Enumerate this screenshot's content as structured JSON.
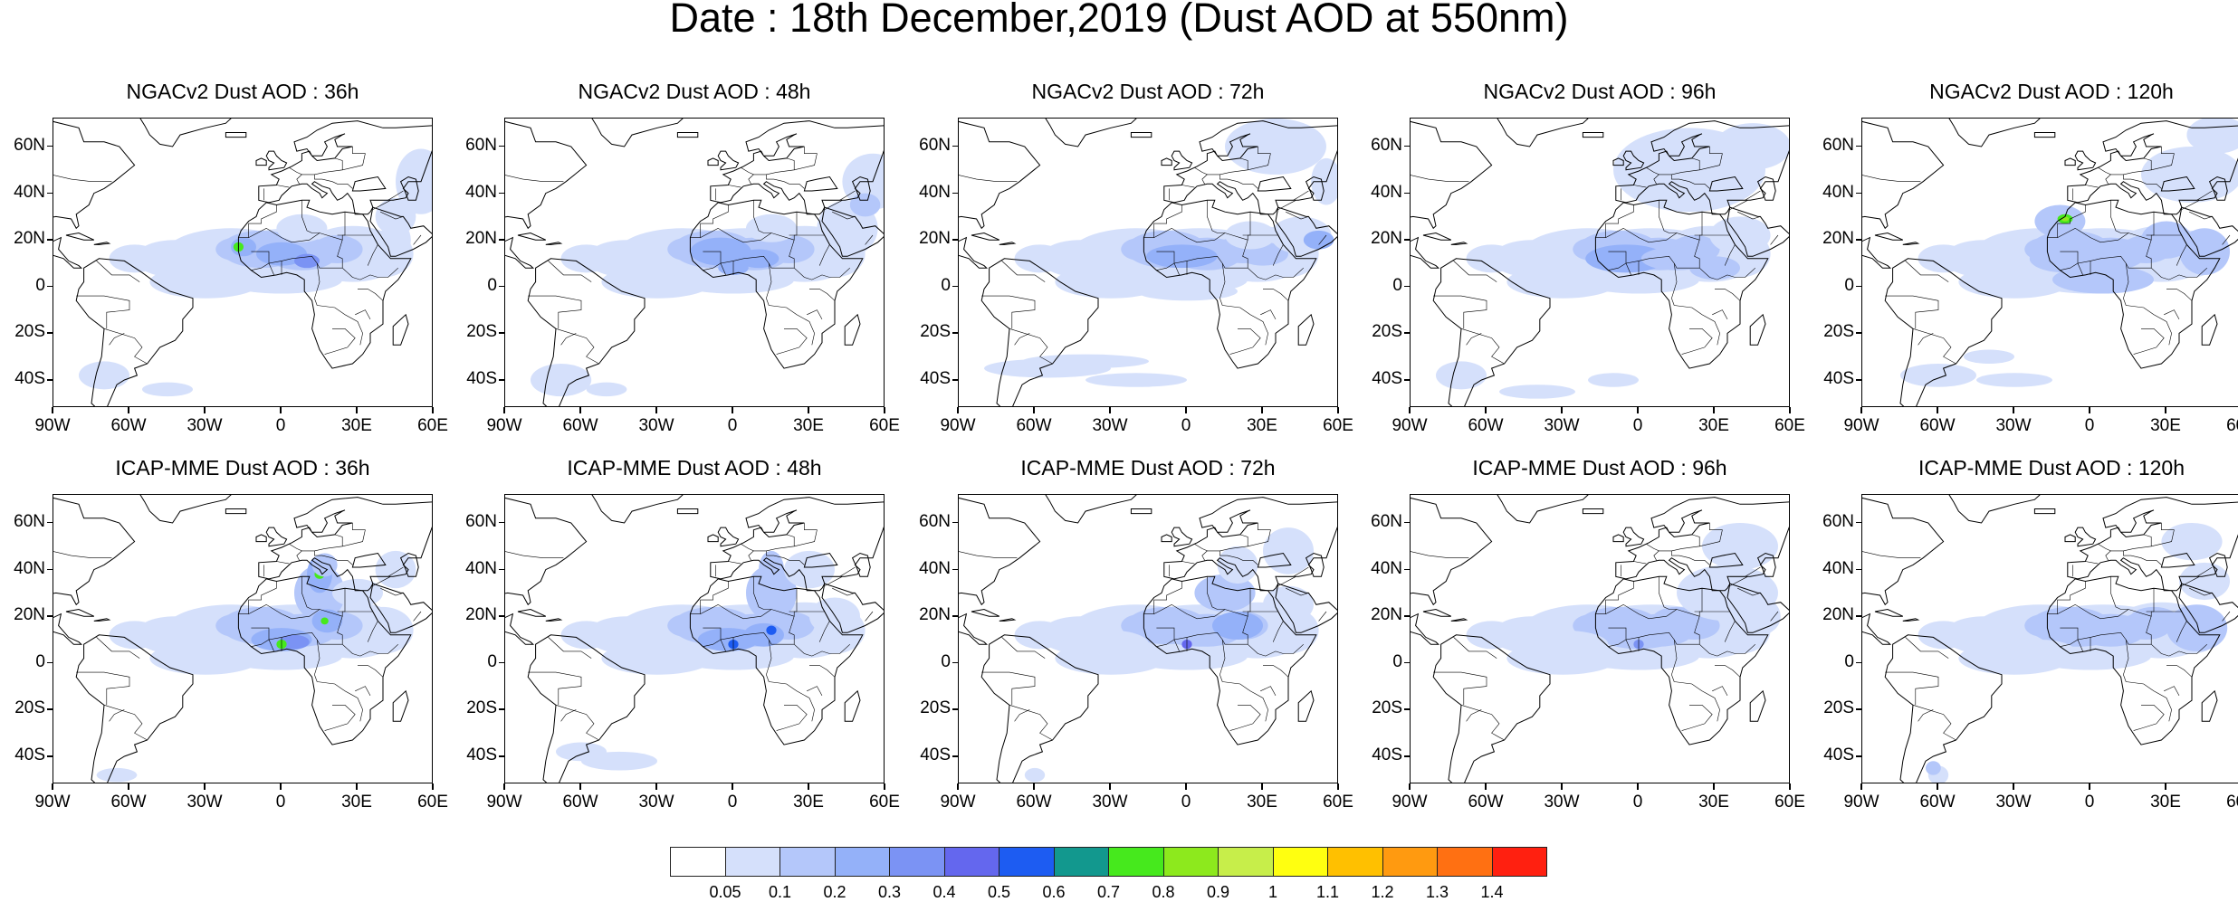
{
  "title": "Date : 18th December,2019 (Dust AOD at 550nm)",
  "lat_labels": [
    "60N",
    "40N",
    "20N",
    "0",
    "20S",
    "40S"
  ],
  "lon_labels": [
    "90W",
    "60W",
    "30W",
    "0",
    "30E",
    "60E"
  ],
  "panels": [
    {
      "title": "NGACv2 Dust AOD : 36h"
    },
    {
      "title": "NGACv2 Dust AOD : 48h"
    },
    {
      "title": "NGACv2 Dust AOD : 72h"
    },
    {
      "title": "NGACv2 Dust AOD : 96h"
    },
    {
      "title": "NGACv2 Dust AOD : 120h"
    },
    {
      "title": "ICAP-MME Dust AOD : 36h"
    },
    {
      "title": "ICAP-MME Dust AOD : 48h"
    },
    {
      "title": "ICAP-MME Dust AOD : 72h"
    },
    {
      "title": "ICAP-MME Dust AOD : 96h"
    },
    {
      "title": "ICAP-MME Dust AOD : 120h"
    }
  ],
  "colorbar": {
    "labels": [
      "0.05",
      "0.1",
      "0.2",
      "0.3",
      "0.4",
      "0.5",
      "0.6",
      "0.7",
      "0.8",
      "0.9",
      "1",
      "1.1",
      "1.2",
      "1.3",
      "1.4"
    ],
    "colors": [
      "#ffffff",
      "#d5e0fb",
      "#b4c7fa",
      "#94b1f9",
      "#7b93f4",
      "#6467ee",
      "#1d5cf2",
      "#12988e",
      "#46e91d",
      "#8de91d",
      "#c7ee4a",
      "#ffff10",
      "#ffc000",
      "#ff9a10",
      "#ff7012",
      "#ff2010"
    ]
  }
}
